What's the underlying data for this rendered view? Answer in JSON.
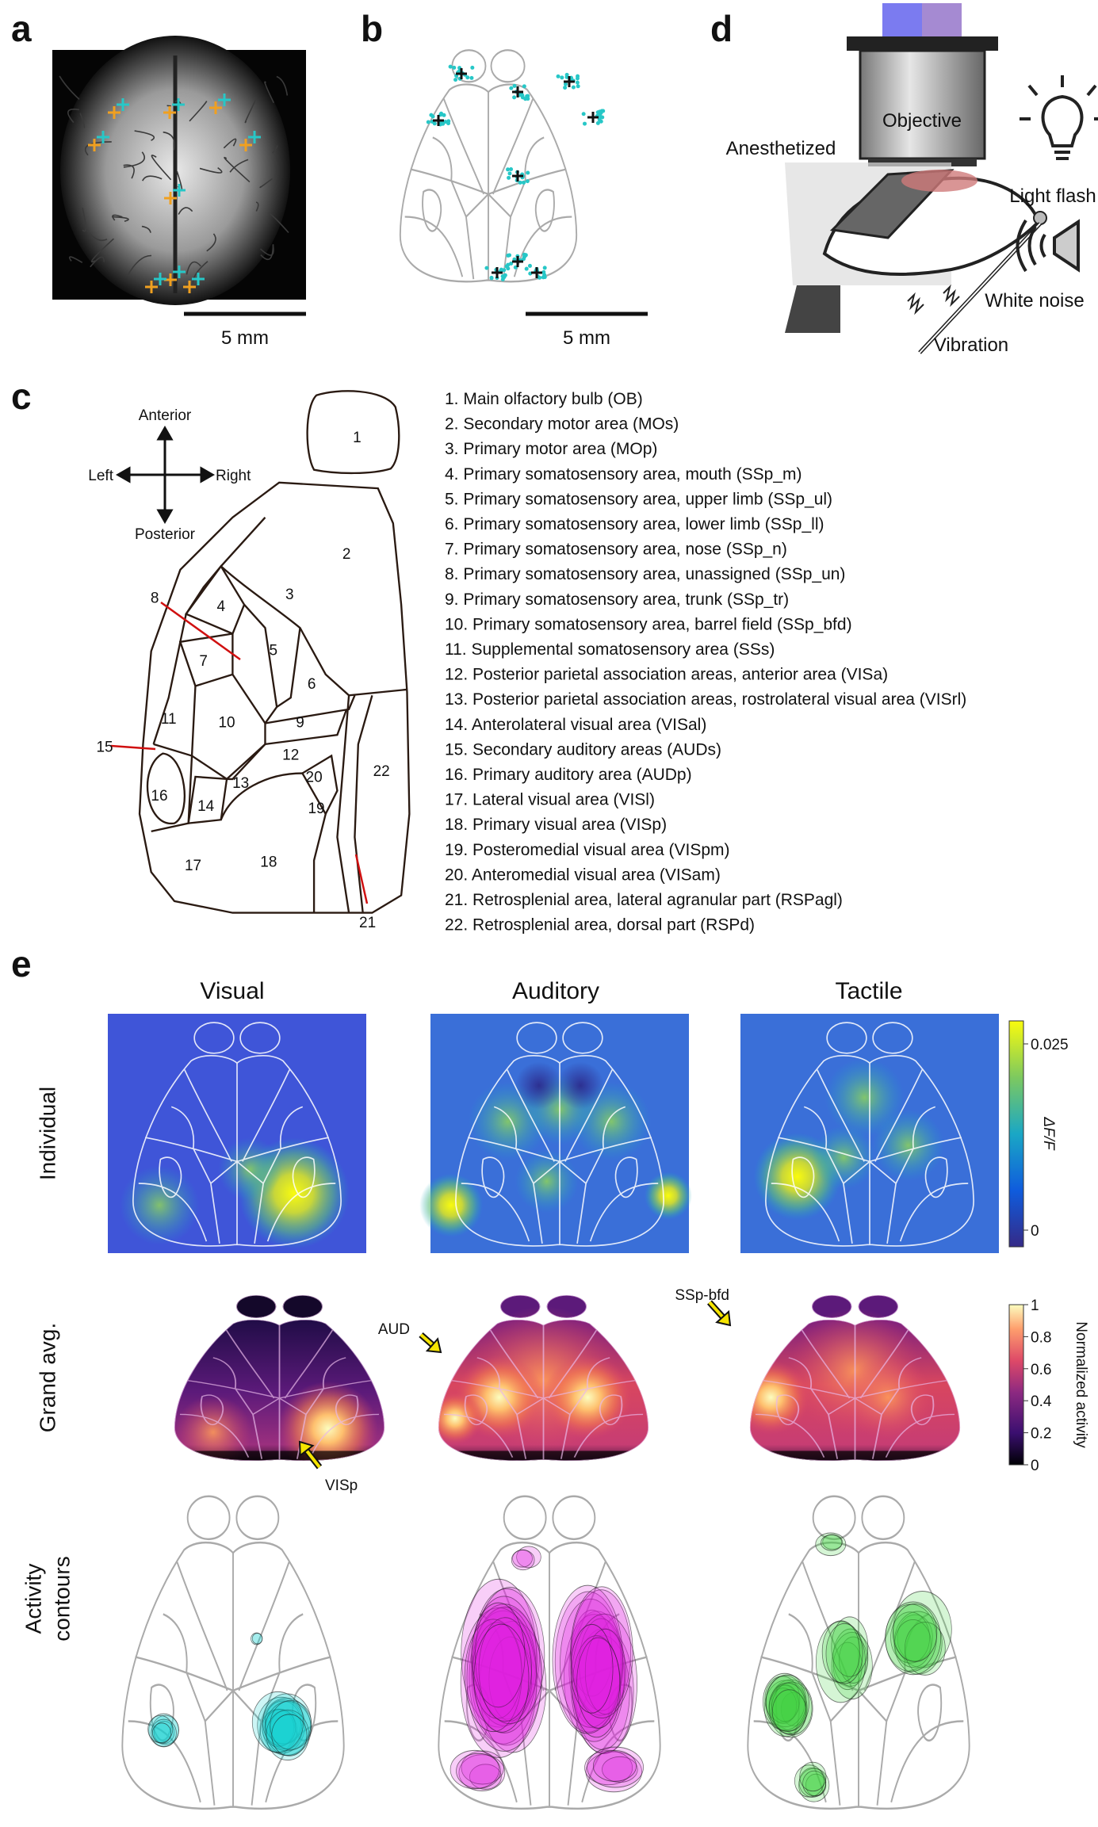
{
  "panels": {
    "a": {
      "letter": "a",
      "scale_bar": "5 mm"
    },
    "b": {
      "letter": "b",
      "scale_bar": "5 mm"
    },
    "c": {
      "letter": "c",
      "compass": {
        "anterior": "Anterior",
        "posterior": "Posterior",
        "left": "Left",
        "right": "Right"
      },
      "region_numbers": [
        "1",
        "2",
        "3",
        "4",
        "5",
        "6",
        "7",
        "8",
        "9",
        "10",
        "11",
        "12",
        "13",
        "14",
        "15",
        "16",
        "17",
        "18",
        "19",
        "20",
        "21",
        "22"
      ],
      "areas": [
        "1. Main olfactory bulb (OB)",
        "2. Secondary motor area (MOs)",
        "3. Primary motor area (MOp)",
        "4. Primary somatosensory area, mouth (SSp_m)",
        "5. Primary somatosensory area, upper limb (SSp_ul)",
        "6. Primary somatosensory area, lower limb (SSp_ll)",
        "7. Primary somatosensory area, nose (SSp_n)",
        "8. Primary somatosensory area, unassigned (SSp_un)",
        "9. Primary somatosensory area, trunk (SSp_tr)",
        "10. Primary somatosensory area, barrel field (SSp_bfd)",
        "11. Supplemental somatosensory area (SSs)",
        "12. Posterior parietal association areas, anterior area (VISa)",
        "13. Posterior parietal association areas, rostrolateral visual area (VISrl)",
        "14. Anterolateral visual area (VISal)",
        "15. Secondary auditory areas (AUDs)",
        "16. Primary auditory area (AUDp)",
        "17. Lateral visual area (VISl)",
        "18. Primary visual area (VISp)",
        "19. Posteromedial visual area (VISpm)",
        "20. Anteromedial visual area (VISam)",
        "21. Retrosplenial area, lateral agranular part (RSPagl)",
        "22. Retrosplenial area, dorsal part (RSPd)"
      ]
    },
    "d": {
      "letter": "d",
      "labels": {
        "objective": "Objective",
        "anesthetized": "Anesthetized",
        "light_flash": "Light flash",
        "white_noise": "White noise",
        "vibration": "Vibration"
      }
    },
    "e": {
      "letter": "e",
      "columns": [
        "Visual",
        "Auditory",
        "Tactile"
      ],
      "rows": {
        "individual": "Individual",
        "grand_avg": "Grand avg.",
        "activity_contours": [
          "Activity",
          "contours"
        ]
      },
      "colorbar_individual": {
        "label": "ΔF/F",
        "ticks": [
          "0.025",
          "0"
        ]
      },
      "colorbar_grand_avg": {
        "label": "Normalized activity",
        "ticks": [
          "1",
          "0.8",
          "0.6",
          "0.4",
          "0.2",
          "0"
        ]
      },
      "annotations": [
        "VISp",
        "AUD",
        "SSp-bfd"
      ]
    }
  }
}
